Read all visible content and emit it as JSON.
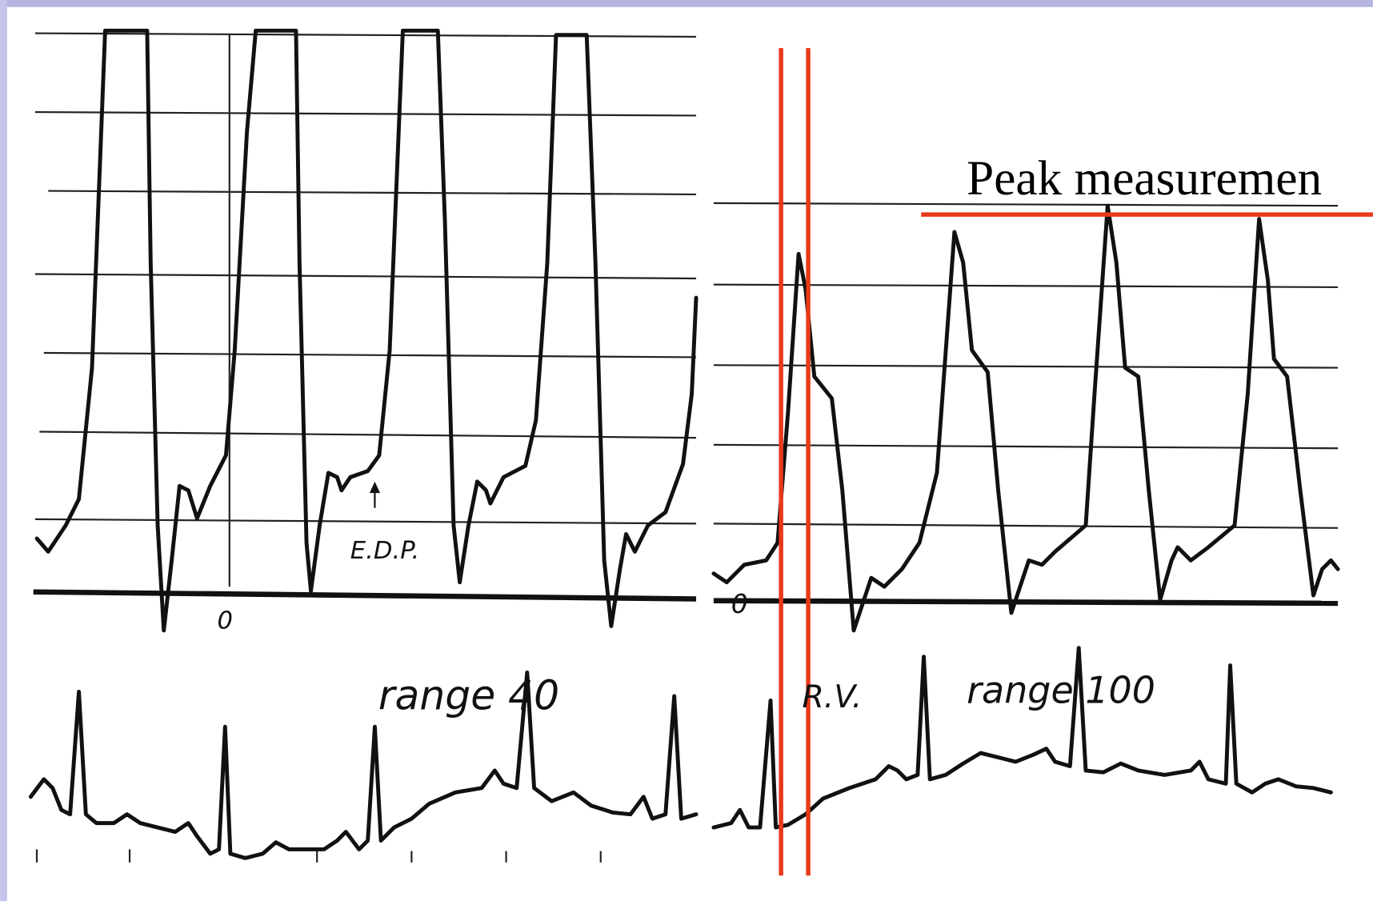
{
  "slide": {
    "title": "Peak measuremen",
    "left_panel": {
      "annotation": "E.D.P.",
      "zero_label": "0",
      "range_label": "range 40"
    },
    "right_panel": {
      "chamber_label": "R.V.",
      "range_label": "range 100",
      "zero_label": "0"
    }
  }
}
